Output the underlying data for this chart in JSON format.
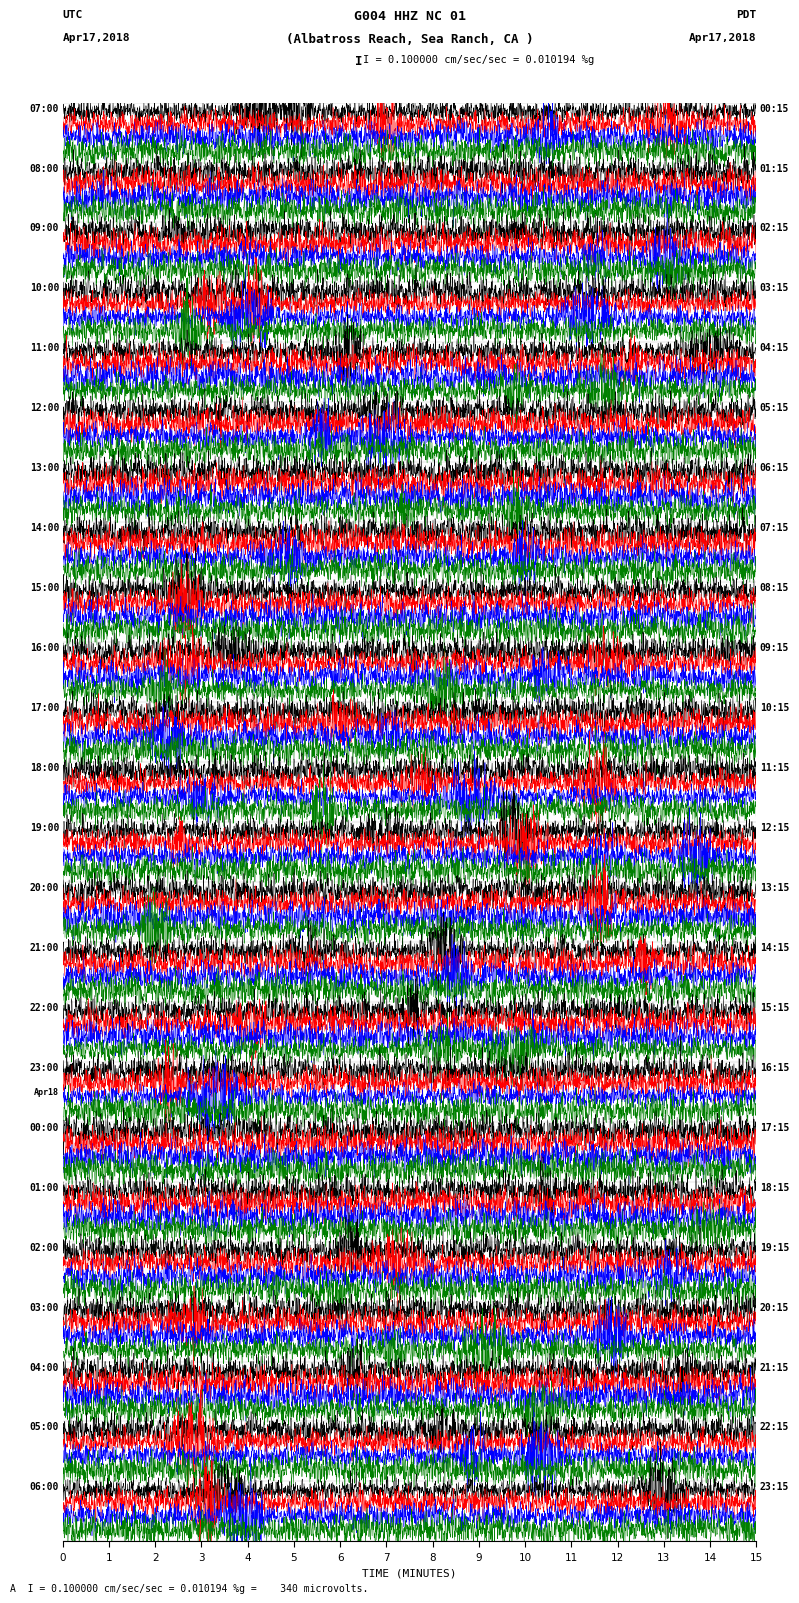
{
  "title_line1": "G004 HHZ NC 01",
  "title_line2": "(Albatross Reach, Sea Ranch, CA )",
  "scale_text": "I = 0.100000 cm/sec/sec = 0.010194 %g",
  "footer_text": "A  I = 0.100000 cm/sec/sec = 0.010194 %g =    340 microvolts.",
  "utc_label": "UTC",
  "pdt_label": "PDT",
  "date_left": "Apr17,2018",
  "date_right": "Apr17,2018",
  "xlabel": "TIME (MINUTES)",
  "left_times": [
    "07:00",
    "08:00",
    "09:00",
    "10:00",
    "11:00",
    "12:00",
    "13:00",
    "14:00",
    "15:00",
    "16:00",
    "17:00",
    "18:00",
    "19:00",
    "20:00",
    "21:00",
    "22:00",
    "23:00",
    "00:00",
    "01:00",
    "02:00",
    "03:00",
    "04:00",
    "05:00",
    "06:00"
  ],
  "left_time_prefix": [
    "",
    "",
    "",
    "",
    "",
    "",
    "",
    "",
    "",
    "",
    "",
    "",
    "",
    "",
    "",
    "",
    "",
    "",
    "",
    "",
    "",
    "",
    "",
    ""
  ],
  "right_times": [
    "00:15",
    "01:15",
    "02:15",
    "03:15",
    "04:15",
    "05:15",
    "06:15",
    "07:15",
    "08:15",
    "09:15",
    "10:15",
    "11:15",
    "12:15",
    "13:15",
    "14:15",
    "15:15",
    "16:15",
    "17:15",
    "18:15",
    "19:15",
    "20:15",
    "21:15",
    "22:15",
    "23:15"
  ],
  "apr18_row": 17,
  "colors": [
    "black",
    "red",
    "blue",
    "green"
  ],
  "n_rows": 24,
  "n_traces_per_row": 4,
  "minutes": 15,
  "background_color": "white",
  "trace_amplitude": 0.12,
  "noise_base": 0.6,
  "lw": 0.35
}
